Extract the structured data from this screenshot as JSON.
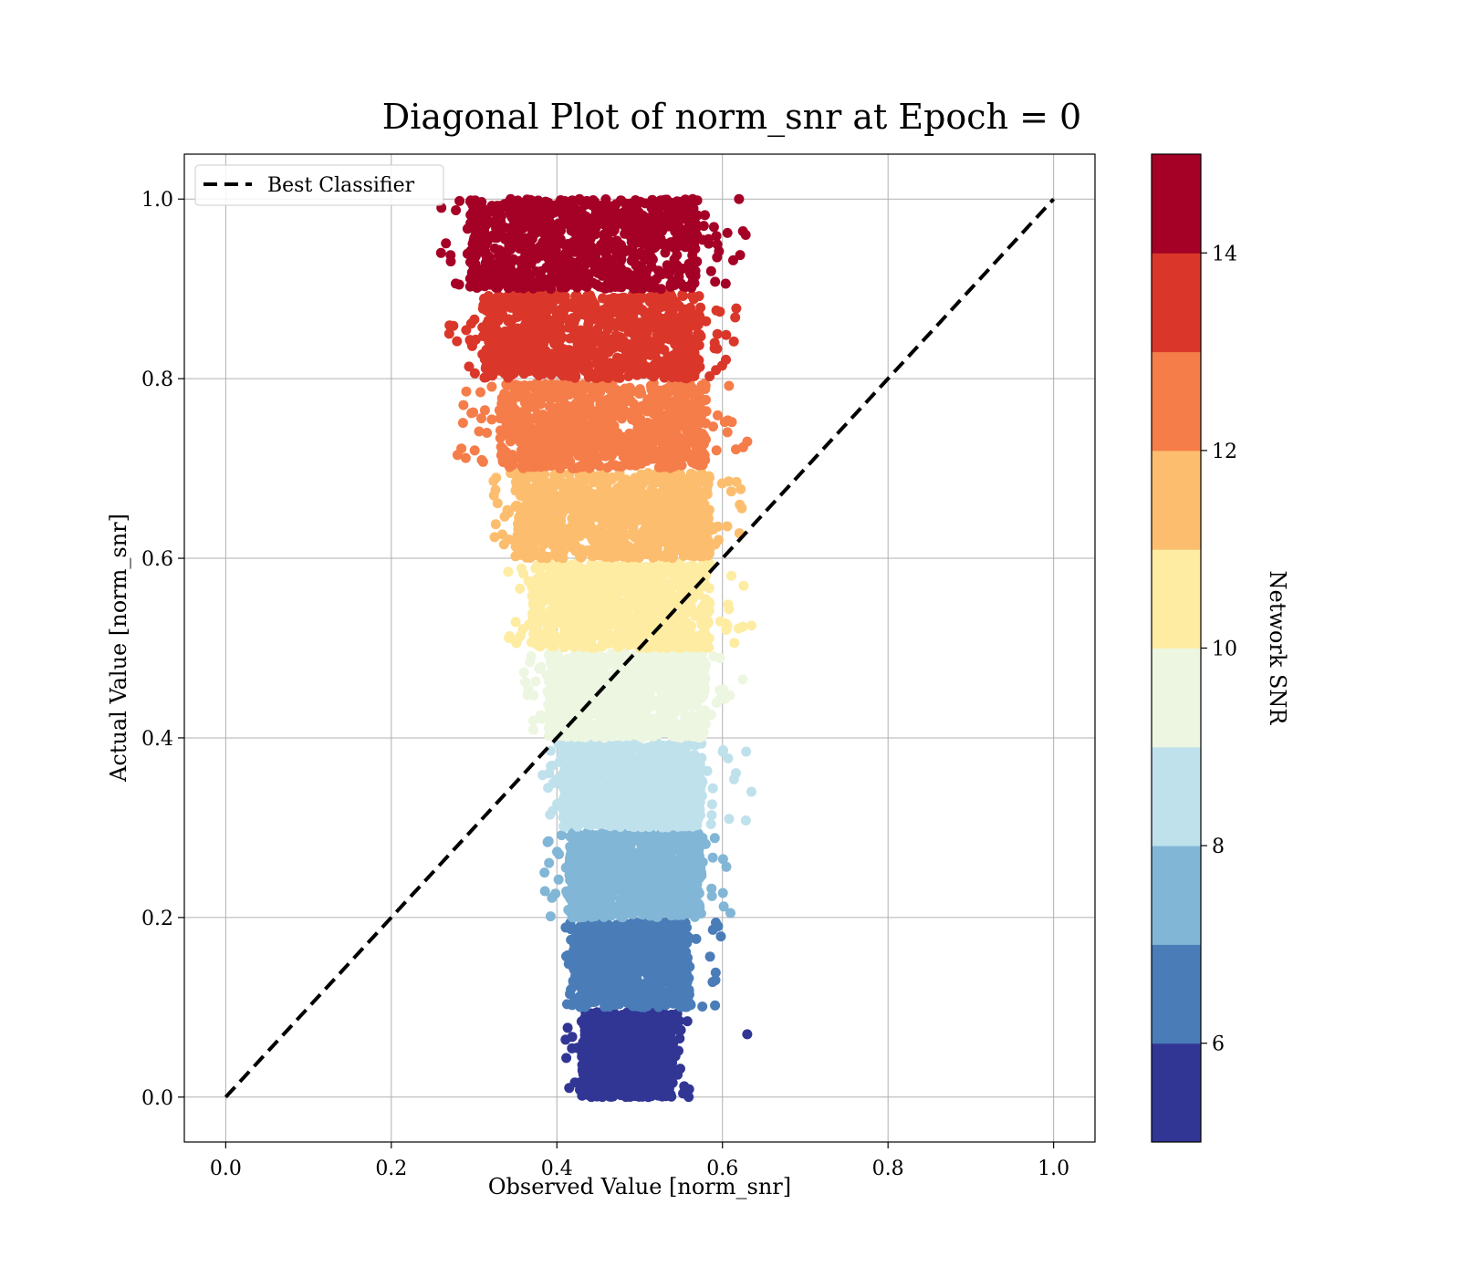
{
  "chart_data": {
    "type": "scatter",
    "title": "Diagonal Plot of norm_snr at Epoch = 0",
    "xlabel": "Observed Value [norm_snr]",
    "ylabel": "Actual Value [norm_snr]",
    "xlim": [
      -0.05,
      1.05
    ],
    "ylim": [
      -0.05,
      1.05
    ],
    "xticks": [
      "0.0",
      "0.2",
      "0.4",
      "0.6",
      "0.8",
      "1.0"
    ],
    "yticks": [
      "0.0",
      "0.2",
      "0.4",
      "0.6",
      "0.8",
      "1.0"
    ],
    "grid": true,
    "legend": {
      "placement": "top-left",
      "entries": [
        "Best Classifier"
      ]
    },
    "reference_line": {
      "name": "Best Classifier",
      "style": "dashed",
      "color": "#000000",
      "x": [
        0.0,
        1.0
      ],
      "y": [
        0.0,
        1.0
      ]
    },
    "colorbar": {
      "label": "Network SNR",
      "min": 5,
      "max": 15,
      "ticks": [
        "6",
        "8",
        "10",
        "12",
        "14"
      ],
      "levels": [
        {
          "from": 5,
          "to": 6,
          "color": "#313695"
        },
        {
          "from": 6,
          "to": 7,
          "color": "#4a7cb8"
        },
        {
          "from": 7,
          "to": 8,
          "color": "#82b6d6"
        },
        {
          "from": 8,
          "to": 9,
          "color": "#bfe1ec"
        },
        {
          "from": 9,
          "to": 10,
          "color": "#edf6e0"
        },
        {
          "from": 10,
          "to": 11,
          "color": "#feeca2"
        },
        {
          "from": 11,
          "to": 12,
          "color": "#fcbe6e"
        },
        {
          "from": 12,
          "to": 13,
          "color": "#f57d4a"
        },
        {
          "from": 13,
          "to": 14,
          "color": "#da372a"
        },
        {
          "from": 14,
          "to": 15,
          "color": "#a50026"
        }
      ]
    },
    "bands": [
      {
        "snr_range": [
          5,
          6
        ],
        "y": [
          0.0,
          0.095
        ],
        "x_core": [
          0.43,
          0.54
        ],
        "x_spread": [
          0.41,
          0.56
        ],
        "color": "#313695"
      },
      {
        "snr_range": [
          6,
          7
        ],
        "y": [
          0.1,
          0.195
        ],
        "x_core": [
          0.42,
          0.56
        ],
        "x_spread": [
          0.41,
          0.6
        ],
        "color": "#4a7cb8"
      },
      {
        "snr_range": [
          7,
          8
        ],
        "y": [
          0.2,
          0.295
        ],
        "x_core": [
          0.415,
          0.575
        ],
        "x_spread": [
          0.385,
          0.61
        ],
        "color": "#82b6d6"
      },
      {
        "snr_range": [
          8,
          9
        ],
        "y": [
          0.3,
          0.395
        ],
        "x_core": [
          0.405,
          0.575
        ],
        "x_spread": [
          0.38,
          0.63
        ],
        "color": "#bfe1ec"
      },
      {
        "snr_range": [
          9,
          10
        ],
        "y": [
          0.4,
          0.495
        ],
        "x_core": [
          0.39,
          0.58
        ],
        "x_spread": [
          0.36,
          0.63
        ],
        "color": "#edf6e0"
      },
      {
        "snr_range": [
          10,
          11
        ],
        "y": [
          0.5,
          0.595
        ],
        "x_core": [
          0.37,
          0.585
        ],
        "x_spread": [
          0.34,
          0.63
        ],
        "color": "#feeca2"
      },
      {
        "snr_range": [
          11,
          12
        ],
        "y": [
          0.6,
          0.695
        ],
        "x_core": [
          0.35,
          0.585
        ],
        "x_spread": [
          0.32,
          0.63
        ],
        "color": "#fcbe6e"
      },
      {
        "snr_range": [
          12,
          13
        ],
        "y": [
          0.7,
          0.795
        ],
        "x_core": [
          0.33,
          0.58
        ],
        "x_spread": [
          0.28,
          0.63
        ],
        "color": "#f57d4a"
      },
      {
        "snr_range": [
          13,
          14
        ],
        "y": [
          0.8,
          0.895
        ],
        "x_core": [
          0.31,
          0.575
        ],
        "x_spread": [
          0.27,
          0.62
        ],
        "color": "#da372a"
      },
      {
        "snr_range": [
          14,
          15
        ],
        "y": [
          0.9,
          1.0
        ],
        "x_core": [
          0.295,
          0.57
        ],
        "x_spread": [
          0.26,
          0.63
        ],
        "color": "#a50026"
      }
    ],
    "outliers": [
      {
        "x": 0.63,
        "y": 0.07,
        "color": "#313695"
      },
      {
        "x": 0.28,
        "y": 0.715,
        "color": "#f57d4a"
      },
      {
        "x": 0.27,
        "y": 0.85,
        "color": "#da372a"
      },
      {
        "x": 0.26,
        "y": 0.94,
        "color": "#a50026"
      },
      {
        "x": 0.62,
        "y": 1.0,
        "color": "#a50026"
      },
      {
        "x": 0.385,
        "y": 0.25,
        "color": "#82b6d6"
      },
      {
        "x": 0.39,
        "y": 0.285,
        "color": "#82b6d6"
      },
      {
        "x": 0.63,
        "y": 0.73,
        "color": "#f57d4a"
      },
      {
        "x": 0.635,
        "y": 0.34,
        "color": "#bfe1ec"
      },
      {
        "x": 0.635,
        "y": 0.525,
        "color": "#feeca2"
      }
    ]
  }
}
